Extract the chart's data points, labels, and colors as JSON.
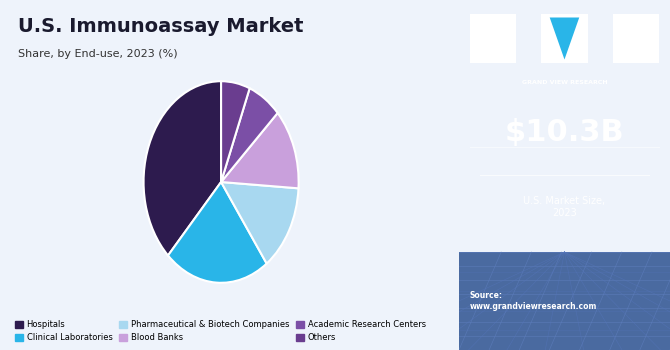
{
  "title": "U.S. Immunoassay Market",
  "subtitle": "Share, by End-use, 2023 (%)",
  "slices": [
    {
      "label": "Hospitals",
      "value": 38,
      "color": "#2d1b4e"
    },
    {
      "label": "Clinical Laboratories",
      "value": 22,
      "color": "#29b5e8"
    },
    {
      "label": "Pharmaceutical & Biotech Companies",
      "value": 14,
      "color": "#a8d8f0"
    },
    {
      "label": "Blood Banks",
      "value": 13,
      "color": "#c9a0dc"
    },
    {
      "label": "Academic Research Centers",
      "value": 7,
      "color": "#7b4fa6"
    },
    {
      "label": "Others",
      "value": 6,
      "color": "#6a3d8f"
    }
  ],
  "market_size": "$10.3B",
  "market_label": "U.S. Market Size,\n2023",
  "source_text": "Source:\nwww.grandviewresearch.com",
  "right_panel_bg": "#3b1f6e",
  "right_panel_bottom_bg": "#5a7abf",
  "left_panel_bg": "#eef3fb",
  "title_color": "#1a1a2e",
  "subtitle_color": "#333333",
  "legend_items": [
    {
      "label": "Hospitals",
      "color": "#2d1b4e"
    },
    {
      "label": "Clinical Laboratories",
      "color": "#29b5e8"
    },
    {
      "label": "Pharmaceutical & Biotech Companies",
      "color": "#a8d8f0"
    },
    {
      "label": "Blood Banks",
      "color": "#c9a0dc"
    },
    {
      "label": "Academic Research Centers",
      "color": "#7b4fa6"
    },
    {
      "label": "Others",
      "color": "#6a3d8f"
    }
  ]
}
